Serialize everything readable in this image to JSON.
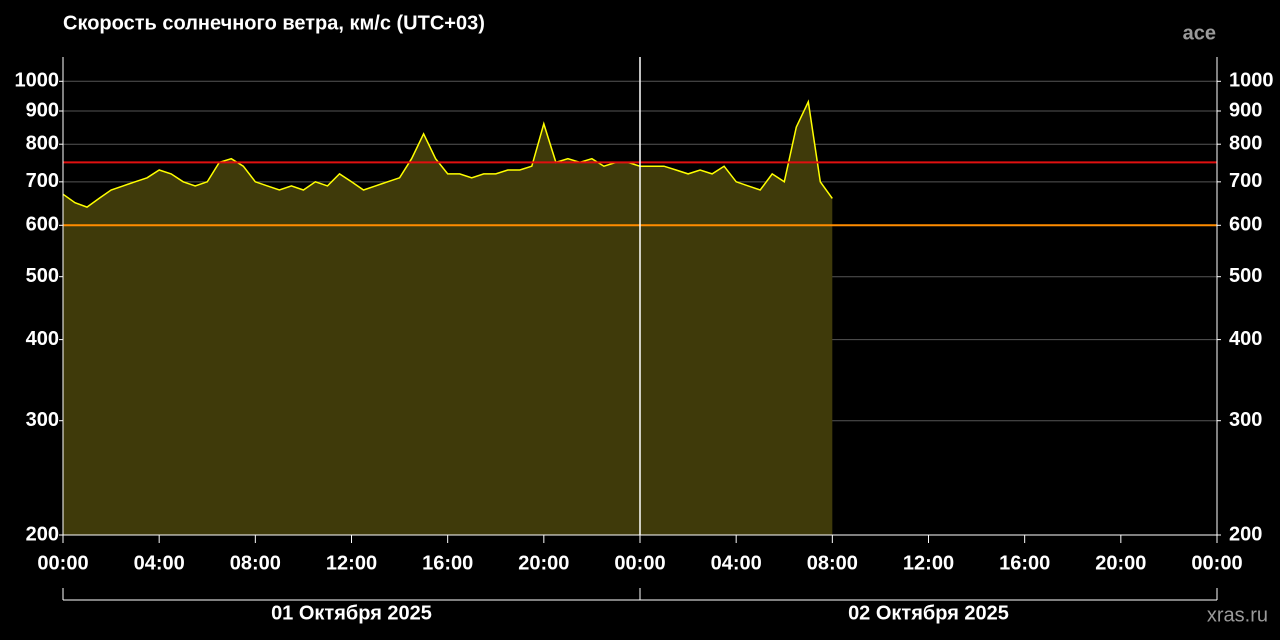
{
  "chart_data": {
    "type": "line",
    "title": "Скорость солнечного ветра, км/с (UTC+03)",
    "source": "ace",
    "site": "xras.ru",
    "dates": [
      {
        "label": "01 Октября 2025",
        "start": 0,
        "end": 24
      },
      {
        "label": "02 Октября 2025",
        "start": 24,
        "end": 48
      }
    ],
    "x": [
      0,
      0.5,
      1,
      1.5,
      2,
      2.5,
      3,
      3.5,
      4,
      4.5,
      5,
      5.5,
      6,
      6.5,
      7,
      7.5,
      8,
      8.5,
      9,
      9.5,
      10,
      10.5,
      11,
      11.5,
      12,
      12.5,
      13,
      13.5,
      14,
      14.5,
      15,
      15.5,
      16,
      16.5,
      17,
      17.5,
      18,
      18.5,
      19,
      19.5,
      20,
      20.5,
      21,
      21.5,
      22,
      22.5,
      23,
      23.5,
      24,
      24.5,
      25,
      25.5,
      26,
      26.5,
      27,
      27.5,
      28,
      28.5,
      29,
      29.5,
      30,
      30.5,
      31,
      31.5,
      32
    ],
    "series": [
      {
        "name": "ace",
        "color": "#ffff00",
        "fill": "#3f3a0a",
        "values": [
          670,
          650,
          640,
          660,
          680,
          690,
          700,
          710,
          730,
          720,
          700,
          690,
          700,
          750,
          760,
          740,
          700,
          690,
          680,
          690,
          680,
          700,
          690,
          720,
          700,
          680,
          690,
          700,
          710,
          760,
          830,
          760,
          720,
          720,
          710,
          720,
          720,
          730,
          730,
          740,
          860,
          750,
          760,
          750,
          760,
          740,
          750,
          750,
          740,
          740,
          740,
          730,
          720,
          730,
          720,
          740,
          700,
          690,
          680,
          720,
          700,
          850,
          930,
          700,
          660
        ]
      }
    ],
    "xlim": [
      0,
      48
    ],
    "xticks": [
      {
        "value": 0,
        "label": "00:00"
      },
      {
        "value": 4,
        "label": "04:00"
      },
      {
        "value": 8,
        "label": "08:00"
      },
      {
        "value": 12,
        "label": "12:00"
      },
      {
        "value": 16,
        "label": "16:00"
      },
      {
        "value": 20,
        "label": "20:00"
      },
      {
        "value": 24,
        "label": "00:00"
      },
      {
        "value": 28,
        "label": "04:00"
      },
      {
        "value": 32,
        "label": "08:00"
      },
      {
        "value": 36,
        "label": "12:00"
      },
      {
        "value": 40,
        "label": "16:00"
      },
      {
        "value": 44,
        "label": "20:00"
      },
      {
        "value": 48,
        "label": "00:00"
      }
    ],
    "ylim": [
      200,
      1090
    ],
    "log_y": true,
    "yticks": [
      200,
      300,
      400,
      500,
      600,
      700,
      800,
      900,
      1000
    ],
    "reference_lines": [
      {
        "value": 750,
        "color": "#e01010"
      },
      {
        "value": 600,
        "color": "#ff8c00"
      }
    ],
    "grid": true
  }
}
